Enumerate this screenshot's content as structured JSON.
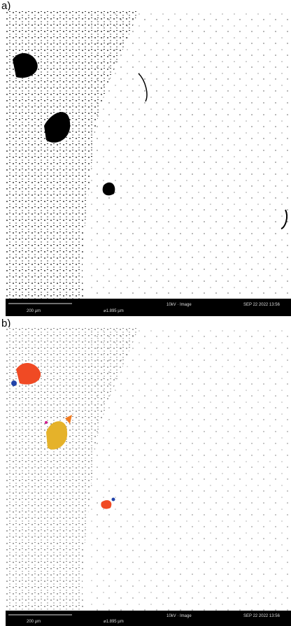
{
  "panels": [
    {
      "label": "a)",
      "scale_bar": "200 µm",
      "field": "⌀1.895 µm",
      "mode": "10kV · Image",
      "date": "SEP 22 2022 13:56"
    },
    {
      "label": "b)",
      "scale_bar": "200 µm",
      "field": "⌀1.895 µm",
      "mode": "10kV · Image",
      "date": "SEP 22 2022 13:56"
    }
  ]
}
